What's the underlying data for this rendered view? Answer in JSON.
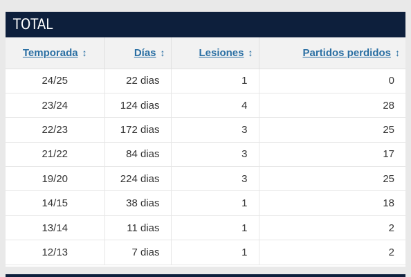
{
  "panel": {
    "title": "TOTAL"
  },
  "columns": [
    {
      "label": "Temporada",
      "sort_icon": "sort-updown-icon"
    },
    {
      "label": "Días",
      "sort_icon": "sort-updown-icon"
    },
    {
      "label": "Lesiones",
      "sort_icon": "sort-updown-icon"
    },
    {
      "label": "Partidos perdidos",
      "sort_icon": "sort-updown-icon"
    }
  ],
  "sort_glyph": "↕",
  "rows": [
    {
      "season": "24/25",
      "days": "22 dias",
      "injuries": "1",
      "games_missed": "0"
    },
    {
      "season": "23/24",
      "days": "124 dias",
      "injuries": "4",
      "games_missed": "28"
    },
    {
      "season": "22/23",
      "days": "172 dias",
      "injuries": "3",
      "games_missed": "25"
    },
    {
      "season": "21/22",
      "days": "84 dias",
      "injuries": "3",
      "games_missed": "17"
    },
    {
      "season": "19/20",
      "days": "224 dias",
      "injuries": "3",
      "games_missed": "25"
    },
    {
      "season": "14/15",
      "days": "38 dias",
      "injuries": "1",
      "games_missed": "18"
    },
    {
      "season": "13/14",
      "days": "11 dias",
      "injuries": "1",
      "games_missed": "2"
    },
    {
      "season": "12/13",
      "days": "7 dias",
      "injuries": "1",
      "games_missed": "2"
    }
  ],
  "colors": {
    "header_bg": "#0d1f3c",
    "link": "#2a6fa3",
    "text": "#333333"
  }
}
